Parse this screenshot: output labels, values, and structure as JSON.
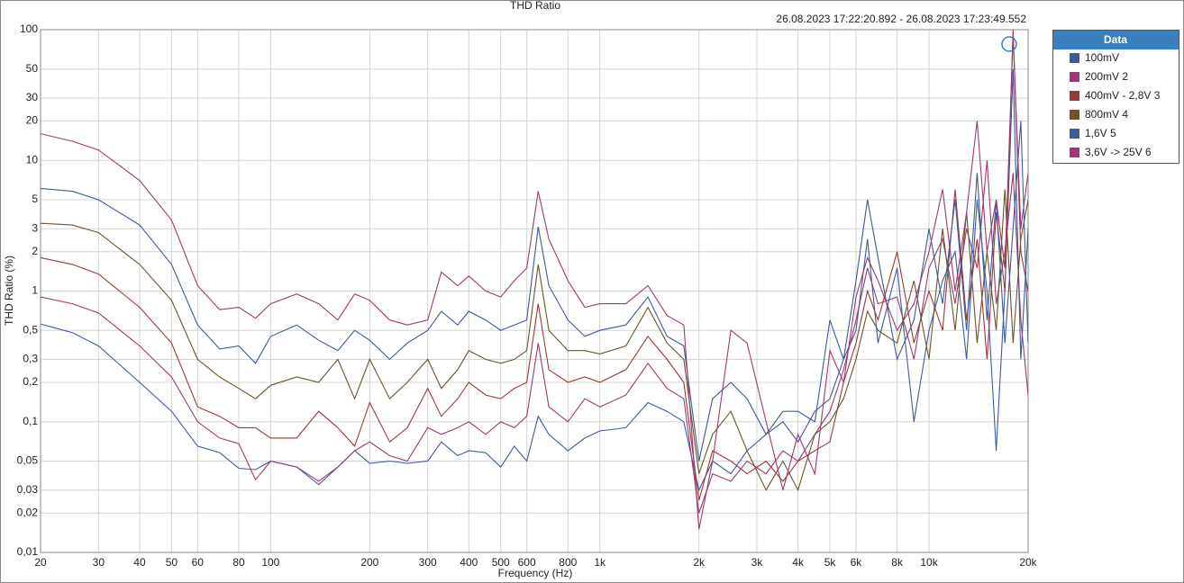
{
  "chart_data": {
    "type": "line",
    "title": "THD Ratio",
    "subtitle": "26.08.2023 17:22:20.892 - 26.08.2023 17:23:49.552",
    "x_label": "Frequency (Hz)",
    "y_label": "THD Ratio (%)",
    "legend_title": "Data",
    "log_x": true,
    "log_y": true,
    "grid": true,
    "legend": "right",
    "xlim": [
      20,
      20000
    ],
    "ylim": [
      0.01,
      100
    ],
    "xticks": [
      20,
      30,
      40,
      50,
      60,
      80,
      100,
      200,
      300,
      400,
      500,
      600,
      800,
      {
        "value": 1000,
        "label": "1k"
      },
      {
        "value": 2000,
        "label": "2k"
      },
      {
        "value": 3000,
        "label": "3k"
      },
      {
        "value": 4000,
        "label": "4k"
      },
      {
        "value": 5000,
        "label": "5k"
      },
      {
        "value": 6000,
        "label": "6k"
      },
      {
        "value": 8000,
        "label": "8k"
      },
      {
        "value": 10000,
        "label": "10k"
      },
      {
        "value": 20000,
        "label": "20k"
      }
    ],
    "yticks": [
      100,
      50,
      30,
      20,
      10,
      5,
      3,
      2,
      1,
      {
        "value": 0.5,
        "label": "0,5"
      },
      {
        "value": 0.3,
        "label": "0,3"
      },
      {
        "value": 0.2,
        "label": "0,2"
      },
      {
        "value": 0.1,
        "label": "0,1"
      },
      {
        "value": 0.05,
        "label": "0,05"
      },
      {
        "value": 0.03,
        "label": "0,03"
      },
      {
        "value": 0.02,
        "label": "0,02"
      },
      {
        "value": 0.01,
        "label": "0,01"
      }
    ],
    "x": [
      20,
      25,
      30,
      40,
      50,
      60,
      70,
      80,
      90,
      100,
      120,
      140,
      160,
      180,
      200,
      230,
      260,
      300,
      330,
      370,
      400,
      450,
      500,
      550,
      600,
      650,
      700,
      800,
      900,
      1000,
      1200,
      1400,
      1600,
      1800,
      2000,
      2200,
      2500,
      2800,
      3200,
      3600,
      4000,
      4500,
      5000,
      5500,
      6000,
      6500,
      7000,
      8000,
      9000,
      10000,
      11000,
      12000,
      13000,
      14000,
      15000,
      16000,
      17000,
      18000,
      19000,
      20000
    ],
    "series": [
      {
        "name": "100mV",
        "color": "#3d5a9a",
        "values": [
          0.56,
          0.48,
          0.38,
          0.2,
          0.12,
          0.065,
          0.058,
          0.044,
          0.043,
          0.05,
          0.045,
          0.033,
          0.045,
          0.06,
          0.048,
          0.05,
          0.048,
          0.05,
          0.07,
          0.055,
          0.06,
          0.058,
          0.045,
          0.065,
          0.05,
          0.11,
          0.08,
          0.06,
          0.075,
          0.085,
          0.09,
          0.14,
          0.12,
          0.1,
          0.03,
          0.05,
          0.04,
          0.06,
          0.08,
          0.1,
          0.07,
          0.12,
          0.15,
          0.3,
          0.5,
          2.5,
          0.4,
          1.5,
          0.1,
          0.5,
          1.2,
          2,
          0.3,
          5,
          1,
          0.06,
          1,
          50,
          0.3,
          3
        ]
      },
      {
        "name": "200mV 2",
        "color": "#9a3a72",
        "values": [
          0.9,
          0.8,
          0.68,
          0.38,
          0.22,
          0.1,
          0.075,
          0.068,
          0.036,
          0.05,
          0.045,
          0.035,
          0.045,
          0.06,
          0.07,
          0.055,
          0.05,
          0.09,
          0.08,
          0.09,
          0.1,
          0.08,
          0.1,
          0.09,
          0.11,
          0.4,
          0.13,
          0.1,
          0.15,
          0.13,
          0.16,
          0.28,
          0.18,
          0.15,
          0.02,
          0.04,
          0.035,
          0.05,
          0.04,
          0.06,
          0.05,
          0.08,
          0.12,
          0.25,
          0.6,
          1.5,
          0.8,
          0.9,
          0.3,
          1.5,
          2.5,
          0.8,
          3,
          1.5,
          10,
          0.8,
          2,
          8,
          0.6,
          0.16
        ]
      },
      {
        "name": "400mV - 2,8V 3",
        "color": "#9c3838",
        "values": [
          1.8,
          1.6,
          1.35,
          0.75,
          0.4,
          0.13,
          0.11,
          0.09,
          0.09,
          0.075,
          0.075,
          0.12,
          0.09,
          0.065,
          0.14,
          0.07,
          0.09,
          0.18,
          0.11,
          0.15,
          0.2,
          0.16,
          0.15,
          0.18,
          0.2,
          0.8,
          0.25,
          0.2,
          0.22,
          0.2,
          0.25,
          0.45,
          0.3,
          0.2,
          0.025,
          0.06,
          0.05,
          0.04,
          0.05,
          0.035,
          0.05,
          0.06,
          0.07,
          0.2,
          0.4,
          1,
          0.6,
          2,
          0.4,
          1,
          0.5,
          6,
          0.6,
          2.5,
          0.3,
          4,
          1,
          100,
          2,
          1
        ]
      },
      {
        "name": "800mV 4",
        "color": "#6b5428",
        "values": [
          3.3,
          3.2,
          2.8,
          1.6,
          0.85,
          0.3,
          0.22,
          0.18,
          0.15,
          0.19,
          0.22,
          0.2,
          0.3,
          0.15,
          0.3,
          0.15,
          0.2,
          0.3,
          0.18,
          0.25,
          0.35,
          0.3,
          0.28,
          0.3,
          0.35,
          1.6,
          0.5,
          0.35,
          0.35,
          0.33,
          0.38,
          0.75,
          0.4,
          0.3,
          0.04,
          0.08,
          0.12,
          0.06,
          0.03,
          0.05,
          0.03,
          0.08,
          0.1,
          0.15,
          0.3,
          0.7,
          0.5,
          0.4,
          1.2,
          0.3,
          3,
          0.5,
          4,
          0.4,
          2,
          0.5,
          6,
          0.4,
          2.5,
          5
        ]
      },
      {
        "name": "1,6V 5",
        "color": "#3d5a9a",
        "values": [
          6.1,
          5.8,
          5,
          3.2,
          1.6,
          0.55,
          0.36,
          0.38,
          0.28,
          0.45,
          0.55,
          0.42,
          0.35,
          0.5,
          0.42,
          0.3,
          0.4,
          0.5,
          0.7,
          0.55,
          0.7,
          0.6,
          0.5,
          0.55,
          0.6,
          3.1,
          1.1,
          0.6,
          0.45,
          0.5,
          0.55,
          0.9,
          0.45,
          0.38,
          0.05,
          0.15,
          0.2,
          0.15,
          0.08,
          0.12,
          0.12,
          0.1,
          0.6,
          0.3,
          1.2,
          5,
          1.8,
          0.3,
          0.6,
          3,
          0.8,
          5,
          0.5,
          8,
          0.6,
          5,
          0.4,
          3,
          20,
          0.4
        ]
      },
      {
        "name": "3,6V -> 25V 6",
        "color": "#9a3a72",
        "values": [
          16,
          14,
          12,
          7,
          3.5,
          1.1,
          0.72,
          0.75,
          0.62,
          0.8,
          0.95,
          0.8,
          0.6,
          0.95,
          0.85,
          0.6,
          0.55,
          0.6,
          1.4,
          1.1,
          1.3,
          1,
          0.9,
          1.2,
          1.5,
          5.8,
          2.5,
          1.2,
          0.75,
          0.8,
          0.8,
          1.1,
          0.65,
          0.55,
          0.015,
          0.05,
          0.5,
          0.4,
          0.1,
          0.03,
          0.08,
          0.04,
          0.35,
          0.2,
          0.9,
          1.8,
          1.2,
          0.5,
          0.8,
          2,
          6,
          1,
          4,
          20,
          2,
          5,
          1.5,
          90,
          3,
          8
        ]
      }
    ]
  }
}
